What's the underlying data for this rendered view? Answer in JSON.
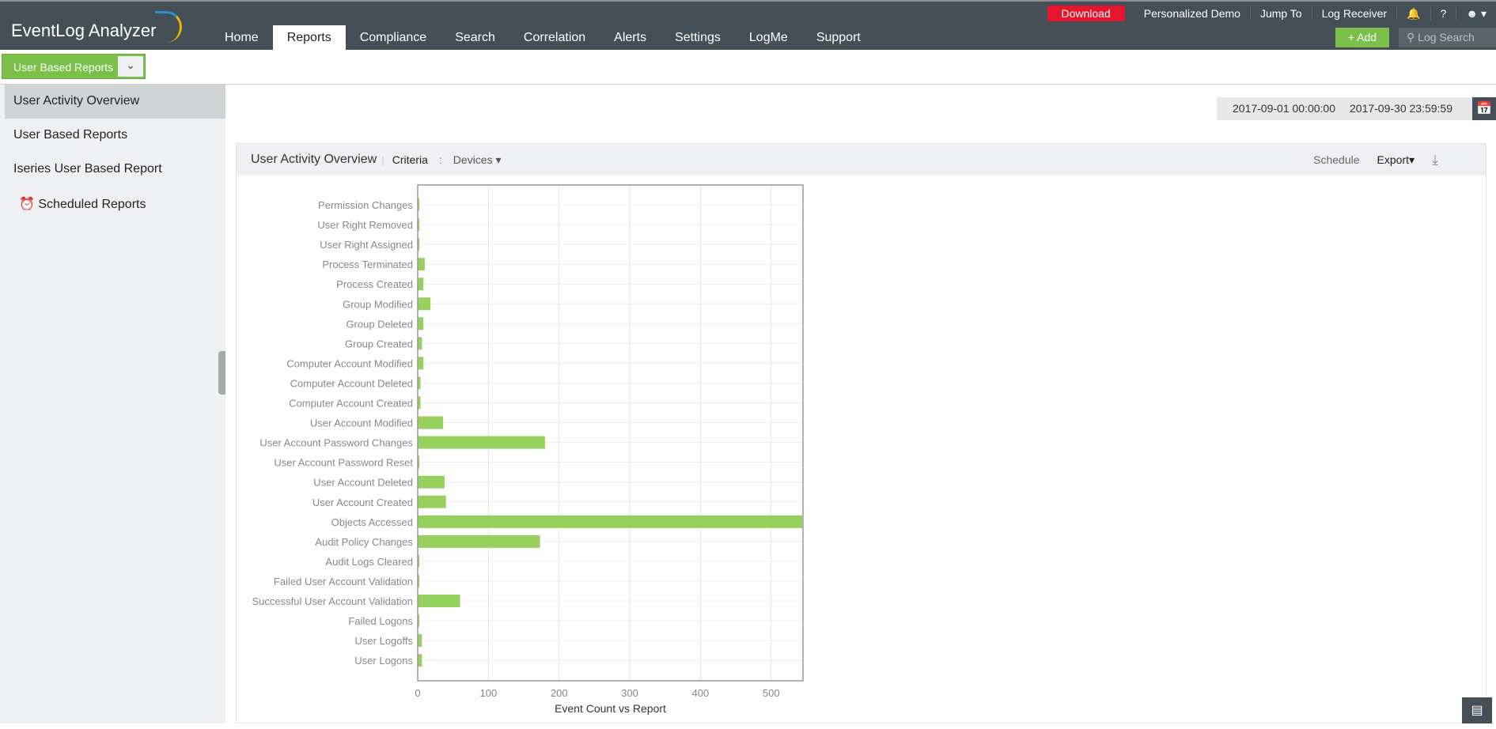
{
  "app": {
    "logo": "EventLog Analyzer"
  },
  "nav": {
    "tabs": [
      "Home",
      "Reports",
      "Compliance",
      "Search",
      "Correlation",
      "Alerts",
      "Settings",
      "LogMe",
      "Support"
    ],
    "active": "Reports"
  },
  "top_util": {
    "download": "Download",
    "demo": "Personalized Demo",
    "jump": "Jump To",
    "receiver": "Log Receiver",
    "help": "?",
    "add": "+ Add",
    "log_search": "Log Search"
  },
  "sub": {
    "dropdown": "User Based Reports"
  },
  "sidebar": {
    "items": [
      "User Activity Overview",
      "User Based Reports",
      "Iseries User Based Report",
      "Scheduled Reports"
    ],
    "active": "User Activity Overview"
  },
  "date_range": {
    "from": "2017-09-01 00:00:00",
    "to": "2017-09-30 23:59:59"
  },
  "panel": {
    "title": "User Activity Overview",
    "criteria": "Criteria",
    "colon": ":",
    "devices": "Devices",
    "schedule": "Schedule",
    "export": "Export"
  },
  "colors": {
    "bar": "#97d05c",
    "topbar": "#444f57",
    "accent": "#7cbf4a",
    "download": "#e5152d"
  },
  "chart_data": {
    "type": "bar",
    "orientation": "horizontal",
    "xlabel": "Event Count vs Report",
    "xlim": [
      0,
      545
    ],
    "xticks": [
      0,
      100,
      200,
      300,
      400,
      500
    ],
    "grid": true,
    "categories": [
      "Permission Changes",
      "User Right Removed",
      "User Right Assigned",
      "Process Terminated",
      "Process Created",
      "Group Modified",
      "Group Deleted",
      "Group Created",
      "Computer Account Modified",
      "Computer Account Deleted",
      "Computer Account Created",
      "User Account Modified",
      "User Account Password Changes",
      "User Account Password Reset",
      "User Account Deleted",
      "User Account Created",
      "Objects Accessed",
      "Audit Policy Changes",
      "Audit Logs Cleared",
      "Failed User Account Validation",
      "Successful User Account Validation",
      "Failed Logons",
      "User Logoffs",
      "User Logons"
    ],
    "values": [
      1,
      1,
      1,
      10,
      8,
      18,
      8,
      6,
      8,
      4,
      4,
      36,
      180,
      1,
      38,
      40,
      544,
      173,
      1,
      1,
      60,
      1,
      6,
      6
    ]
  }
}
